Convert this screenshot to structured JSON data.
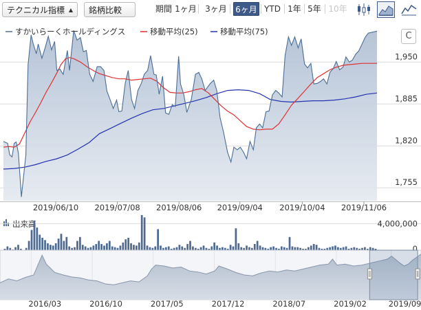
{
  "toolbar": {
    "technical_dropdown": "テクニカル指標",
    "compare_dropdown": "銘柄比較",
    "period_label": "期間",
    "periods": [
      {
        "label": "1ヶ月",
        "state": "normal"
      },
      {
        "label": "3ヶ月",
        "state": "normal"
      },
      {
        "label": "6ヶ月",
        "state": "selected"
      },
      {
        "label": "YTD",
        "state": "normal"
      },
      {
        "label": "1年",
        "state": "normal"
      },
      {
        "label": "5年",
        "state": "normal"
      },
      {
        "label": "10年",
        "state": "disabled"
      }
    ],
    "view_icons": [
      "candlestick-icon",
      "area-chart-icon",
      "line-chart-icon"
    ],
    "selected_view": "area-chart-icon",
    "refresh_glyph": "C"
  },
  "colors": {
    "price": "#4a6d96",
    "ma25": "#e03030",
    "ma75": "#2232b0",
    "volume": "#4e6a90",
    "accent": "#3d5a8a"
  },
  "chart_data": [
    {
      "type": "area",
      "legend": [
        {
          "name": "すかいらーくホールディングス",
          "color": "#4a6d96"
        },
        {
          "name": "移動平均(25)",
          "color": "#e03030"
        },
        {
          "name": "移動平均(75)",
          "color": "#2232b0"
        }
      ],
      "legend_position": "top-left",
      "ylim": [
        1735,
        2010
      ],
      "yticks": [
        "1,950",
        "1,885",
        "1,820",
        "1,755"
      ],
      "ytick_values": [
        1950,
        1885,
        1820,
        1755
      ],
      "xticks": [
        {
          "label": "2019/06/10",
          "t": 0.14
        },
        {
          "label": "2019/07/08",
          "t": 0.305
        },
        {
          "label": "2019/08/06",
          "t": 0.47
        },
        {
          "label": "2019/09/04",
          "t": 0.633
        },
        {
          "label": "2019/10/04",
          "t": 0.8
        },
        {
          "label": "2019/11/06",
          "t": 0.965
        }
      ],
      "grid": true,
      "price": [
        [
          0.0,
          1827
        ],
        [
          0.011,
          1824
        ],
        [
          0.017,
          1806
        ],
        [
          0.023,
          1803
        ],
        [
          0.029,
          1824
        ],
        [
          0.034,
          1826
        ],
        [
          0.04,
          1809
        ],
        [
          0.048,
          1741
        ],
        [
          0.06,
          1806
        ],
        [
          0.066,
          1946
        ],
        [
          0.074,
          1992
        ],
        [
          0.08,
          1978
        ],
        [
          0.088,
          1963
        ],
        [
          0.093,
          1978
        ],
        [
          0.103,
          1956
        ],
        [
          0.111,
          1971
        ],
        [
          0.12,
          1990
        ],
        [
          0.129,
          1969
        ],
        [
          0.137,
          1982
        ],
        [
          0.143,
          1937
        ],
        [
          0.151,
          1939
        ],
        [
          0.16,
          1931
        ],
        [
          0.171,
          1968
        ],
        [
          0.177,
          1937
        ],
        [
          0.188,
          1999
        ],
        [
          0.197,
          1984
        ],
        [
          0.206,
          1988
        ],
        [
          0.214,
          1966
        ],
        [
          0.222,
          1968
        ],
        [
          0.231,
          1931
        ],
        [
          0.24,
          1920
        ],
        [
          0.251,
          1943
        ],
        [
          0.26,
          1943
        ],
        [
          0.269,
          1937
        ],
        [
          0.277,
          1905
        ],
        [
          0.286,
          1891
        ],
        [
          0.294,
          1878
        ],
        [
          0.303,
          1891
        ],
        [
          0.309,
          1873
        ],
        [
          0.317,
          1874
        ],
        [
          0.326,
          1917
        ],
        [
          0.334,
          1937
        ],
        [
          0.343,
          1892
        ],
        [
          0.351,
          1878
        ],
        [
          0.36,
          1906
        ],
        [
          0.369,
          1917
        ],
        [
          0.377,
          1931
        ],
        [
          0.386,
          1937
        ],
        [
          0.394,
          1960
        ],
        [
          0.403,
          1931
        ],
        [
          0.409,
          1930
        ],
        [
          0.417,
          1900
        ],
        [
          0.426,
          1928
        ],
        [
          0.434,
          1871
        ],
        [
          0.443,
          1869
        ],
        [
          0.452,
          1884
        ],
        [
          0.46,
          1881
        ],
        [
          0.469,
          1959
        ],
        [
          0.474,
          1916
        ],
        [
          0.483,
          1899
        ],
        [
          0.491,
          1872
        ],
        [
          0.503,
          1892
        ],
        [
          0.514,
          1931
        ],
        [
          0.523,
          1934
        ],
        [
          0.531,
          1924
        ],
        [
          0.54,
          1906
        ],
        [
          0.554,
          1917
        ],
        [
          0.563,
          1922
        ],
        [
          0.571,
          1906
        ],
        [
          0.58,
          1864
        ],
        [
          0.589,
          1842
        ],
        [
          0.6,
          1810
        ],
        [
          0.609,
          1795
        ],
        [
          0.617,
          1818
        ],
        [
          0.626,
          1814
        ],
        [
          0.634,
          1818
        ],
        [
          0.643,
          1810
        ],
        [
          0.651,
          1800
        ],
        [
          0.66,
          1827
        ],
        [
          0.669,
          1814
        ],
        [
          0.677,
          1848
        ],
        [
          0.686,
          1854
        ],
        [
          0.694,
          1848
        ],
        [
          0.703,
          1873
        ],
        [
          0.711,
          1874
        ],
        [
          0.72,
          1899
        ],
        [
          0.729,
          1906
        ],
        [
          0.737,
          1902
        ],
        [
          0.746,
          1896
        ],
        [
          0.754,
          1960
        ],
        [
          0.763,
          1989
        ],
        [
          0.771,
          1976
        ],
        [
          0.78,
          1989
        ],
        [
          0.789,
          1972
        ],
        [
          0.797,
          1986
        ],
        [
          0.806,
          1947
        ],
        [
          0.814,
          1941
        ],
        [
          0.823,
          1948
        ],
        [
          0.831,
          1916
        ],
        [
          0.84,
          1917
        ],
        [
          0.849,
          1920
        ],
        [
          0.857,
          1924
        ],
        [
          0.866,
          1916
        ],
        [
          0.874,
          1934
        ],
        [
          0.883,
          1940
        ],
        [
          0.891,
          1951
        ],
        [
          0.9,
          1938
        ],
        [
          0.909,
          1942
        ],
        [
          0.917,
          1958
        ],
        [
          0.926,
          1950
        ],
        [
          0.934,
          1953
        ],
        [
          0.943,
          1962
        ],
        [
          0.951,
          1967
        ],
        [
          0.96,
          1978
        ],
        [
          0.969,
          1989
        ],
        [
          0.977,
          1995
        ],
        [
          1.0,
          1998
        ]
      ],
      "ma25": [
        [
          0.0,
          1818
        ],
        [
          0.014,
          1819
        ],
        [
          0.029,
          1818
        ],
        [
          0.043,
          1823
        ],
        [
          0.057,
          1840
        ],
        [
          0.071,
          1857
        ],
        [
          0.086,
          1872
        ],
        [
          0.1,
          1887
        ],
        [
          0.114,
          1903
        ],
        [
          0.129,
          1918
        ],
        [
          0.143,
          1933
        ],
        [
          0.154,
          1946
        ],
        [
          0.166,
          1955
        ],
        [
          0.177,
          1957
        ],
        [
          0.189,
          1955
        ],
        [
          0.206,
          1950
        ],
        [
          0.223,
          1943
        ],
        [
          0.24,
          1937
        ],
        [
          0.257,
          1932
        ],
        [
          0.274,
          1929
        ],
        [
          0.291,
          1926
        ],
        [
          0.309,
          1924
        ],
        [
          0.326,
          1924
        ],
        [
          0.343,
          1922
        ],
        [
          0.36,
          1923
        ],
        [
          0.377,
          1924
        ],
        [
          0.394,
          1925
        ],
        [
          0.411,
          1920
        ],
        [
          0.429,
          1910
        ],
        [
          0.446,
          1903
        ],
        [
          0.463,
          1902
        ],
        [
          0.48,
          1902
        ],
        [
          0.497,
          1904
        ],
        [
          0.514,
          1907
        ],
        [
          0.531,
          1909
        ],
        [
          0.549,
          1902
        ],
        [
          0.566,
          1892
        ],
        [
          0.583,
          1882
        ],
        [
          0.6,
          1874
        ],
        [
          0.617,
          1868
        ],
        [
          0.634,
          1859
        ],
        [
          0.651,
          1850
        ],
        [
          0.669,
          1846
        ],
        [
          0.686,
          1845
        ],
        [
          0.703,
          1846
        ],
        [
          0.72,
          1846
        ],
        [
          0.737,
          1854
        ],
        [
          0.754,
          1868
        ],
        [
          0.771,
          1883
        ],
        [
          0.789,
          1894
        ],
        [
          0.806,
          1905
        ],
        [
          0.823,
          1916
        ],
        [
          0.84,
          1926
        ],
        [
          0.857,
          1932
        ],
        [
          0.874,
          1938
        ],
        [
          0.891,
          1942
        ],
        [
          0.909,
          1945
        ],
        [
          0.926,
          1946
        ],
        [
          0.943,
          1947
        ],
        [
          0.96,
          1948
        ],
        [
          0.977,
          1948
        ],
        [
          1.0,
          1948
        ]
      ],
      "ma75": [
        [
          0.0,
          1784
        ],
        [
          0.029,
          1785
        ],
        [
          0.057,
          1787
        ],
        [
          0.086,
          1791
        ],
        [
          0.114,
          1796
        ],
        [
          0.143,
          1800
        ],
        [
          0.171,
          1806
        ],
        [
          0.2,
          1815
        ],
        [
          0.229,
          1825
        ],
        [
          0.257,
          1839
        ],
        [
          0.286,
          1847
        ],
        [
          0.314,
          1855
        ],
        [
          0.343,
          1863
        ],
        [
          0.371,
          1870
        ],
        [
          0.4,
          1876
        ],
        [
          0.429,
          1878
        ],
        [
          0.457,
          1882
        ],
        [
          0.486,
          1886
        ],
        [
          0.514,
          1890
        ],
        [
          0.543,
          1895
        ],
        [
          0.571,
          1901
        ],
        [
          0.6,
          1906
        ],
        [
          0.629,
          1907
        ],
        [
          0.657,
          1906
        ],
        [
          0.686,
          1901
        ],
        [
          0.714,
          1892
        ],
        [
          0.743,
          1889
        ],
        [
          0.771,
          1888
        ],
        [
          0.8,
          1889
        ],
        [
          0.829,
          1890
        ],
        [
          0.857,
          1890
        ],
        [
          0.886,
          1891
        ],
        [
          0.914,
          1893
        ],
        [
          0.943,
          1896
        ],
        [
          0.971,
          1900
        ],
        [
          1.0,
          1902
        ]
      ]
    },
    {
      "type": "bar",
      "title": "出来高",
      "ylim": [
        0,
        5000000
      ],
      "yticks": [
        "4,000,000",
        "0"
      ],
      "ytick_values": [
        4000000,
        0
      ],
      "grid": true,
      "values": [
        800000,
        1100000,
        900000,
        700000,
        1000000,
        1300000,
        800000,
        600000,
        900000,
        1800000,
        3200000,
        4400000,
        3500000,
        2600000,
        2200000,
        1900000,
        1500000,
        1300000,
        1200000,
        1500000,
        2100000,
        2700000,
        1800000,
        2300000,
        1100000,
        900000,
        1000000,
        1800000,
        2300000,
        1300000,
        1100000,
        900000,
        1000000,
        1200000,
        1400000,
        1800000,
        1400000,
        1200000,
        1500000,
        1800000,
        1100000,
        1000000,
        900000,
        1200000,
        1600000,
        2000000,
        2200000,
        1500000,
        1300000,
        1200000,
        1600000,
        5100000,
        4800000,
        1200000,
        1000000,
        900000,
        1100000,
        3300000,
        1200000,
        900000,
        1000000,
        1100000,
        800000,
        900000,
        1000000,
        1300000,
        1100000,
        900000,
        1400000,
        1800000,
        1100000,
        900000,
        800000,
        1000000,
        1200000,
        900000,
        800000,
        1100000,
        1600000,
        1200000,
        900000,
        1000000,
        900000,
        800000,
        1300000,
        1100000,
        3400000,
        1500000,
        1000000,
        900000,
        1200000,
        1000000,
        900000,
        1400000,
        1800000,
        1200000,
        1000000,
        900000,
        800000,
        1000000,
        1100000,
        900000,
        800000,
        1100000,
        1000000,
        900000,
        2300000,
        1100000,
        1000000,
        1000000,
        900000,
        800000,
        800000,
        1000000,
        1200000,
        1400000,
        1300000,
        900000,
        800000,
        800000,
        900000,
        1000000,
        1100000,
        1200000,
        1000000,
        900000,
        1000000,
        1100000,
        800000,
        900000,
        1000000,
        900000,
        800000,
        900000,
        1000000,
        800000,
        1000000,
        900000,
        800000
      ]
    },
    {
      "type": "area",
      "role": "navigator",
      "xticks": [
        {
          "label": "2016/03",
          "t": 0.11
        },
        {
          "label": "2016/10",
          "t": 0.255
        },
        {
          "label": "2017/05",
          "t": 0.4
        },
        {
          "label": "2017/12",
          "t": 0.545
        },
        {
          "label": "2018/07",
          "t": 0.69
        },
        {
          "label": "2019/02",
          "t": 0.835
        },
        {
          "label": "2019/09",
          "t": 0.965
        }
      ],
      "ylim": [
        0,
        1
      ],
      "values": [
        [
          0.0,
          0.34
        ],
        [
          0.02,
          0.42
        ],
        [
          0.04,
          0.38
        ],
        [
          0.06,
          0.45
        ],
        [
          0.08,
          0.5
        ],
        [
          0.1,
          0.9
        ],
        [
          0.11,
          0.72
        ],
        [
          0.13,
          0.55
        ],
        [
          0.15,
          0.5
        ],
        [
          0.17,
          0.46
        ],
        [
          0.19,
          0.44
        ],
        [
          0.21,
          0.4
        ],
        [
          0.23,
          0.38
        ],
        [
          0.25,
          0.32
        ],
        [
          0.27,
          0.3
        ],
        [
          0.29,
          0.34
        ],
        [
          0.31,
          0.38
        ],
        [
          0.33,
          0.36
        ],
        [
          0.35,
          0.48
        ],
        [
          0.36,
          0.62
        ],
        [
          0.37,
          0.7
        ],
        [
          0.39,
          0.68
        ],
        [
          0.41,
          0.64
        ],
        [
          0.43,
          0.66
        ],
        [
          0.45,
          0.58
        ],
        [
          0.47,
          0.56
        ],
        [
          0.49,
          0.52
        ],
        [
          0.51,
          0.58
        ],
        [
          0.52,
          0.68
        ],
        [
          0.54,
          0.62
        ],
        [
          0.56,
          0.55
        ],
        [
          0.58,
          0.5
        ],
        [
          0.6,
          0.48
        ],
        [
          0.62,
          0.54
        ],
        [
          0.64,
          0.58
        ],
        [
          0.66,
          0.56
        ],
        [
          0.68,
          0.6
        ],
        [
          0.7,
          0.58
        ],
        [
          0.72,
          0.62
        ],
        [
          0.74,
          0.66
        ],
        [
          0.76,
          0.7
        ],
        [
          0.78,
          0.72
        ],
        [
          0.79,
          0.82
        ],
        [
          0.8,
          0.7
        ],
        [
          0.82,
          0.72
        ],
        [
          0.84,
          0.68
        ],
        [
          0.86,
          0.7
        ],
        [
          0.88,
          0.74
        ],
        [
          0.9,
          0.78
        ],
        [
          0.92,
          0.82
        ],
        [
          0.93,
          0.88
        ],
        [
          0.95,
          0.74
        ],
        [
          0.96,
          0.68
        ],
        [
          0.97,
          0.72
        ],
        [
          0.98,
          0.8
        ],
        [
          0.99,
          0.86
        ],
        [
          1.0,
          0.92
        ]
      ],
      "selection": [
        0.878,
        0.992
      ]
    }
  ]
}
